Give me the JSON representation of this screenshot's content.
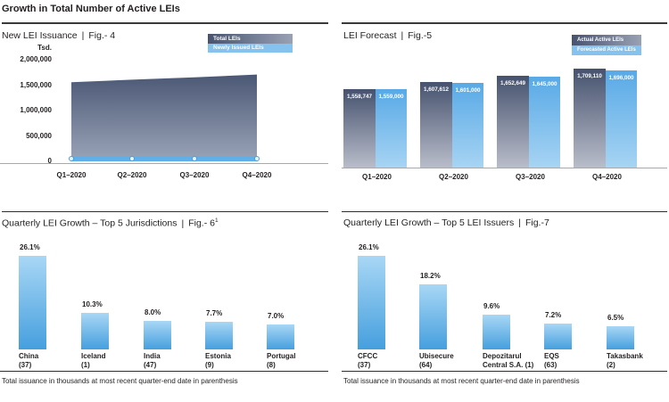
{
  "page_title": "Growth in Total Number of Active LEIs",
  "colors": {
    "actual_bar_top": "#46526e",
    "actual_bar_bottom": "#b9bdca",
    "forecast_bar_top": "#58a9e6",
    "forecast_bar_bottom": "#a7d4f3",
    "growth_bar_top": "#a9d7f5",
    "growth_bar_bottom": "#459fde",
    "newly_issued_band": "#5fafe9",
    "legend_light_blue": "#85c2ee",
    "axis_gray": "#a7a9ac",
    "rule_dark": "#2e2e2e",
    "text": "#231f20"
  },
  "chart_data": [
    {
      "id": "fig4",
      "type": "area",
      "title": "New LEI Issuance",
      "fig_label": "Fig.- 4",
      "ylabel": "Tsd.",
      "x": [
        "Q1–2020",
        "Q2–2020",
        "Q3–2020",
        "Q4–2020"
      ],
      "y_ticks": [
        2000000,
        1500000,
        1000000,
        500000,
        0
      ],
      "y_tick_labels": [
        "2,000,000",
        "1,500,000",
        "1,000,000",
        "500,000",
        "0"
      ],
      "ylim": [
        0,
        2000000
      ],
      "grid": false,
      "legend": [
        "Total LEIs",
        "Newly Issued LEIs"
      ],
      "legend_position": "top-right",
      "series": [
        {
          "name": "Total LEIs",
          "style": "area",
          "values_estimated": [
            1558747,
            1607612,
            1652649,
            1709110
          ]
        },
        {
          "name": "Newly Issued LEIs",
          "style": "band-with-markers",
          "values_estimated": [
            50000,
            50000,
            50000,
            50000
          ]
        }
      ]
    },
    {
      "id": "fig5",
      "type": "bar",
      "title": "LEI Forecast",
      "fig_label": "Fig.-5",
      "categories": [
        "Q1–2020",
        "Q2–2020",
        "Q3–2020",
        "Q4–2020"
      ],
      "legend": [
        "Actual Active LEIs",
        "Forecasted Active LEIs"
      ],
      "legend_position": "top-right",
      "axis_truncated": true,
      "bar_labels": "inside-top",
      "series": [
        {
          "name": "Actual Active LEIs",
          "values": [
            1558747,
            1607612,
            1652649,
            1709110
          ],
          "labels": [
            "1,558,747",
            "1,607,612",
            "1,652,649",
            "1,709,110"
          ]
        },
        {
          "name": "Forecasted Active LEIs",
          "values": [
            1559000,
            1601000,
            1645000,
            1696000
          ],
          "labels": [
            "1,559,000",
            "1,601,000",
            "1,645,000",
            "1,696,000"
          ]
        }
      ]
    },
    {
      "id": "fig6",
      "type": "bar",
      "title": "Quarterly LEI Growth – Top 5 Jurisdictions",
      "fig_label": "Fig.- 6",
      "fig_superscript": "1",
      "categories": [
        "China",
        "Iceland",
        "India",
        "Estonia",
        "Portugal"
      ],
      "category_counts": [
        "(37)",
        "(1)",
        "(47)",
        "(9)",
        "(8)"
      ],
      "category_label_lines": [
        [
          "China",
          "(37)"
        ],
        [
          "Iceland",
          "(1)"
        ],
        [
          "India",
          "(47)"
        ],
        [
          "Estonia",
          "(9)"
        ],
        [
          "Portugal",
          "(8)"
        ]
      ],
      "values": [
        26.1,
        10.3,
        8.0,
        7.7,
        7.0
      ],
      "value_labels": [
        "26.1%",
        "10.3%",
        "8.0%",
        "7.7%",
        "7.0%"
      ],
      "ylim": [
        0,
        28
      ],
      "footnote": "Total issuance in thousands at most recent quarter-end date in parenthesis"
    },
    {
      "id": "fig7",
      "type": "bar",
      "title": "Quarterly LEI Growth – Top 5 LEI Issuers",
      "fig_label": "Fig.-7",
      "categories": [
        "CFCC",
        "Ubisecure",
        "Depozitarul Central S.A.",
        "EQS",
        "Takasbank"
      ],
      "category_counts": [
        "(37)",
        "(64)",
        "(1)",
        "(63)",
        "(2)"
      ],
      "category_label_lines": [
        [
          "CFCC",
          "(37)"
        ],
        [
          "Ubisecure",
          "(64)"
        ],
        [
          "Depozitarul",
          "Central S.A. (1)"
        ],
        [
          "EQS",
          "(63)"
        ],
        [
          "Takasbank",
          "(2)"
        ]
      ],
      "values": [
        26.1,
        18.2,
        9.6,
        7.2,
        6.5
      ],
      "value_labels": [
        "26.1%",
        "18.2%",
        "9.6%",
        "7.2%",
        "6.5%"
      ],
      "ylim": [
        0,
        28
      ],
      "footnote": "Total issuance in thousands at most recent quarter-end date in parenthesis"
    }
  ]
}
